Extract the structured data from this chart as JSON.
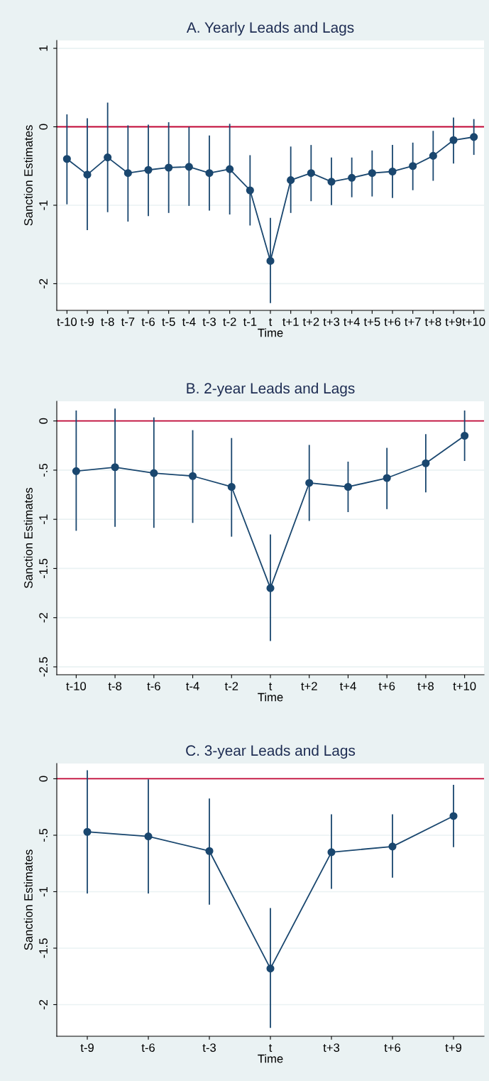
{
  "chart_data": [
    {
      "type": "line",
      "title": "A. Yearly Leads and Lags",
      "xlabel": "Time",
      "ylabel": "Sanction Estimates",
      "categories": [
        "t-10",
        "t-9",
        "t-8",
        "t-7",
        "t-6",
        "t-5",
        "t-4",
        "t-3",
        "t-2",
        "t-1",
        "t",
        "t+1",
        "t+2",
        "t+3",
        "t+4",
        "t+5",
        "t+6",
        "t+7",
        "t+8",
        "t+9",
        "t+10"
      ],
      "series": [
        {
          "color": "#1a476f",
          "values": [
            -0.41,
            -0.61,
            -0.39,
            -0.59,
            -0.55,
            -0.52,
            -0.51,
            -0.59,
            -0.54,
            -0.81,
            -1.71,
            -0.68,
            -0.59,
            -0.7,
            -0.65,
            -0.59,
            -0.57,
            -0.5,
            -0.37,
            -0.17,
            -0.13
          ],
          "errors": [
            [
              -0.98,
              0.15
            ],
            [
              -1.31,
              0.1
            ],
            [
              -1.08,
              0.3
            ],
            [
              -1.2,
              0.01
            ],
            [
              -1.13,
              0.02
            ],
            [
              -1.09,
              0.05
            ],
            [
              -1.0,
              -0.01
            ],
            [
              -1.06,
              -0.12
            ],
            [
              -1.11,
              0.03
            ],
            [
              -1.25,
              -0.37
            ],
            [
              -2.24,
              -1.17
            ],
            [
              -1.09,
              -0.26
            ],
            [
              -0.94,
              -0.24
            ],
            [
              -0.99,
              -0.4
            ],
            [
              -0.89,
              -0.4
            ],
            [
              -0.88,
              -0.31
            ],
            [
              -0.9,
              -0.24
            ],
            [
              -0.8,
              -0.21
            ],
            [
              -0.68,
              -0.06
            ],
            [
              -0.46,
              0.11
            ],
            [
              -0.35,
              0.09
            ]
          ]
        }
      ],
      "ylim": [
        -2.34,
        1.1
      ],
      "yticks": [
        -2,
        -1,
        0,
        1
      ],
      "grid": "y",
      "marker": "circle",
      "line_style": "solid",
      "ref_lines": [
        {
          "axis": "y",
          "value": 0,
          "color": "#c10534"
        }
      ]
    },
    {
      "type": "line",
      "title": "B. 2-year Leads and Lags",
      "xlabel": "Time",
      "ylabel": "Sanction Estimates",
      "categories": [
        "t-10",
        "t-8",
        "t-6",
        "t-4",
        "t-2",
        "t",
        "t+2",
        "t+4",
        "t+6",
        "t+8",
        "t+10"
      ],
      "series": [
        {
          "color": "#1a476f",
          "values": [
            -0.51,
            -0.47,
            -0.53,
            -0.56,
            -0.67,
            -1.7,
            -0.63,
            -0.67,
            -0.58,
            -0.43,
            -0.15
          ],
          "errors": [
            [
              -1.11,
              0.1
            ],
            [
              -1.07,
              0.12
            ],
            [
              -1.08,
              0.03
            ],
            [
              -1.03,
              -0.1
            ],
            [
              -1.17,
              -0.18
            ],
            [
              -2.23,
              -1.16
            ],
            [
              -1.01,
              -0.25
            ],
            [
              -0.92,
              -0.42
            ],
            [
              -0.89,
              -0.28
            ],
            [
              -0.72,
              -0.14
            ],
            [
              -0.4,
              0.1
            ]
          ]
        }
      ],
      "ylim": [
        -2.58,
        0.2
      ],
      "yticks": [
        {
          "value": -2.5,
          "label": "-2.5"
        },
        {
          "value": -2,
          "label": "-2"
        },
        {
          "value": -1.5,
          "label": "-1.5"
        },
        {
          "value": -1,
          "label": "-1"
        },
        {
          "value": -0.5,
          "label": "-.5"
        },
        0
      ],
      "grid": "y",
      "marker": "circle",
      "line_style": "solid",
      "ref_lines": [
        {
          "axis": "y",
          "value": 0,
          "color": "#c10534"
        }
      ]
    },
    {
      "type": "line",
      "title": "C. 3-year Leads and Lags",
      "xlabel": "Time",
      "ylabel": "Sanction Estimates",
      "categories": [
        "t-9",
        "t-6",
        "t-3",
        "t",
        "t+3",
        "t+6",
        "t+9"
      ],
      "series": [
        {
          "color": "#1a476f",
          "values": [
            -0.47,
            -0.51,
            -0.64,
            -1.68,
            -0.65,
            -0.6,
            -0.33
          ],
          "errors": [
            [
              -1.01,
              0.07
            ],
            [
              -1.01,
              -0.01
            ],
            [
              -1.11,
              -0.18
            ],
            [
              -2.2,
              -1.15
            ],
            [
              -0.97,
              -0.32
            ],
            [
              -0.87,
              -0.32
            ],
            [
              -0.6,
              -0.06
            ]
          ]
        }
      ],
      "ylim": [
        -2.28,
        0.135
      ],
      "yticks": [
        {
          "value": -2,
          "label": "-2"
        },
        {
          "value": -1.5,
          "label": "-1.5"
        },
        {
          "value": -1,
          "label": "-1"
        },
        {
          "value": -0.5,
          "label": "-.5"
        },
        0
      ],
      "grid": "y",
      "marker": "circle",
      "line_style": "solid",
      "ref_lines": [
        {
          "axis": "y",
          "value": 0,
          "color": "#c10534"
        }
      ]
    }
  ]
}
